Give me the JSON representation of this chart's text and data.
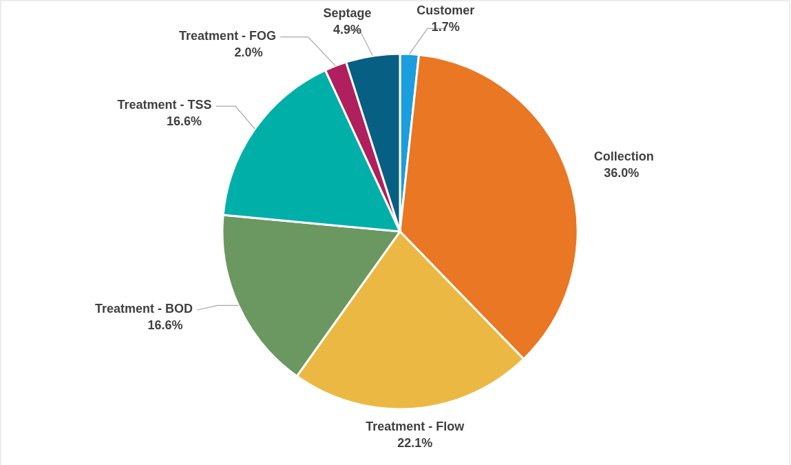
{
  "chart_data": {
    "type": "pie",
    "categories": [
      "Customer",
      "Collection",
      "Treatment - Flow",
      "Treatment - BOD",
      "Treatment - TSS",
      "Treatment - FOG",
      "Septage"
    ],
    "values": [
      1.7,
      36.0,
      22.1,
      16.6,
      16.6,
      2.0,
      4.9
    ],
    "colors": [
      "#1a9ede",
      "#e97724",
      "#ebb943",
      "#6b9861",
      "#00b0a8",
      "#b01f5e",
      "#075f84"
    ],
    "value_labels": [
      "1.7%",
      "36.0%",
      "22.1%",
      "16.6%",
      "16.6%",
      "2.0%",
      "4.9%"
    ],
    "legend": false
  }
}
